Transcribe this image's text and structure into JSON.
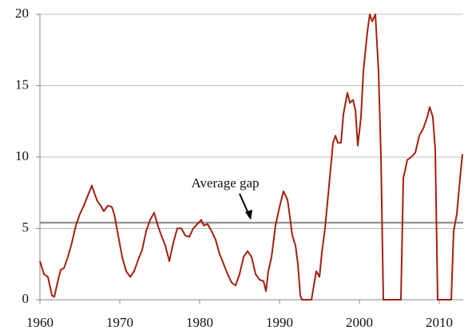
{
  "chart_data": {
    "type": "line",
    "x": [
      1960.0,
      1960.5,
      1961.0,
      1961.5,
      1961.8,
      1962.2,
      1962.6,
      1963.0,
      1963.5,
      1964.0,
      1964.5,
      1965.0,
      1965.5,
      1966.0,
      1966.5,
      1966.8,
      1967.2,
      1967.6,
      1968.0,
      1968.5,
      1969.0,
      1969.3,
      1969.8,
      1970.3,
      1970.8,
      1971.3,
      1971.8,
      1972.3,
      1972.8,
      1973.3,
      1973.8,
      1974.3,
      1974.7,
      1975.2,
      1975.7,
      1976.2,
      1976.7,
      1977.2,
      1977.7,
      1978.2,
      1978.7,
      1979.2,
      1979.7,
      1980.2,
      1980.5,
      1981.0,
      1981.5,
      1982.0,
      1982.5,
      1983.0,
      1983.5,
      1984.0,
      1984.5,
      1985.0,
      1985.5,
      1986.0,
      1986.5,
      1987.0,
      1987.5,
      1988.0,
      1988.3,
      1988.6,
      1989.0,
      1989.5,
      1990.0,
      1990.5,
      1991.0,
      1991.3,
      1991.6,
      1992.0,
      1992.3,
      1992.6,
      1992.8,
      1993.5,
      1994.0,
      1994.3,
      1994.6,
      1995.0,
      1995.3,
      1995.7,
      1996.2,
      1996.7,
      1997.0,
      1997.3,
      1997.7,
      1998.0,
      1998.5,
      1998.8,
      1999.2,
      1999.5,
      1999.8,
      2000.2,
      2000.5,
      2001.0,
      2001.3,
      2001.6,
      2002.0,
      2002.4,
      2002.7,
      2003.0,
      2003.5,
      2004.5,
      2005.2,
      2005.5,
      2006.0,
      2006.5,
      2007.0,
      2007.5,
      2008.0,
      2008.5,
      2008.8,
      2009.2,
      2009.5,
      2009.8,
      2010.5,
      2011.5,
      2011.8,
      2012.2,
      2012.6,
      2012.9
    ],
    "series": [
      {
        "color": "#a32010",
        "values": [
          2.7,
          1.8,
          1.6,
          0.3,
          0.2,
          1.2,
          2.1,
          2.2,
          3.0,
          4.0,
          5.2,
          6.0,
          6.6,
          7.3,
          8.0,
          7.5,
          6.9,
          6.6,
          6.2,
          6.6,
          6.5,
          6.0,
          4.5,
          3.0,
          2.0,
          1.6,
          2.0,
          2.8,
          3.5,
          4.8,
          5.6,
          6.1,
          5.3,
          4.5,
          3.8,
          2.7,
          4.0,
          5.0,
          5.0,
          4.5,
          4.4,
          5.0,
          5.3,
          5.6,
          5.2,
          5.3,
          4.8,
          4.2,
          3.2,
          2.5,
          1.8,
          1.2,
          1.0,
          1.8,
          3.0,
          3.4,
          3.0,
          1.8,
          1.4,
          1.3,
          0.6,
          2.0,
          3.0,
          5.2,
          6.5,
          7.6,
          7.0,
          5.8,
          4.5,
          3.8,
          2.5,
          0.3,
          0,
          0,
          0,
          1.0,
          2.0,
          1.6,
          3.3,
          5.0,
          8.0,
          11.0,
          11.5,
          11.0,
          11.0,
          13.0,
          14.5,
          13.8,
          14.0,
          13.3,
          10.8,
          12.8,
          16.0,
          18.8,
          20,
          19.5,
          20,
          16.0,
          10,
          0,
          0,
          0,
          0,
          8.5,
          9.8,
          10.0,
          10.3,
          11.5,
          12.0,
          12.8,
          13.5,
          12.8,
          10.5,
          0,
          0,
          0,
          4.8,
          6.0,
          8.5,
          10.2
        ]
      }
    ],
    "xlim": [
      1960,
      2013
    ],
    "xticks": [
      1960,
      1970,
      1980,
      1990,
      2000,
      2010
    ],
    "ylim": [
      0,
      20
    ],
    "yticks": [
      0,
      5,
      10,
      15,
      20
    ],
    "grid": true,
    "average": 5.4,
    "average_color": "#808080",
    "annotation": "Average gap"
  }
}
